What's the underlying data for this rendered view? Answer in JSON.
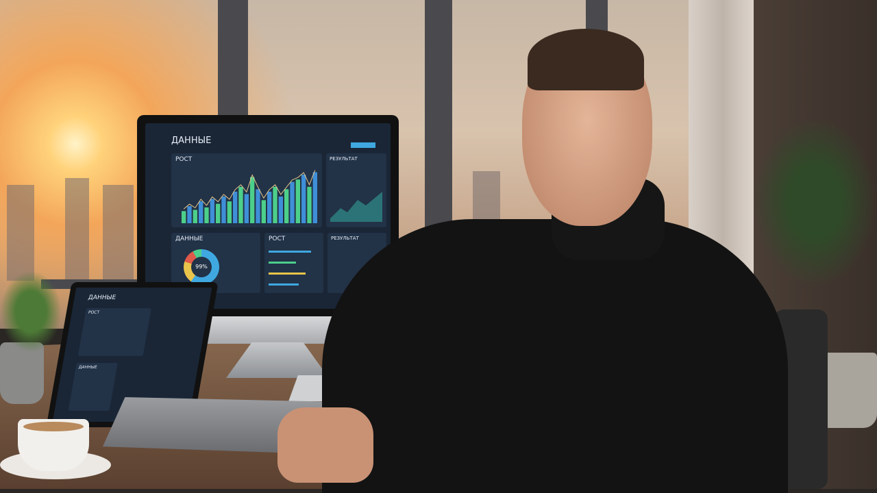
{
  "scene": "man in black turtleneck at desk with monitor and laptop showing analytics dashboard, city sunset behind window",
  "monitor": {
    "title": "ДАННЫЕ",
    "panels": [
      "РОСТ",
      "РЕЗУЛЬТАТ",
      "ДАННЫЕ",
      "РОСТ",
      "РЕЗУЛЬТАТ"
    ],
    "donut_value": "99%",
    "bars": [
      10,
      14,
      11,
      18,
      13,
      20,
      16,
      22,
      18,
      26,
      30,
      24,
      38,
      28,
      19,
      26,
      30,
      22,
      28,
      34,
      36,
      40,
      30,
      42
    ]
  },
  "laptop": {
    "title": "ДАННЫЕ",
    "panels": [
      "РОСТ",
      "ДАННЫЕ"
    ]
  },
  "colors": {
    "screen": "#1a2636",
    "panel": "#223247",
    "accent": "#3fa8e0",
    "green": "#4ccf8a"
  }
}
